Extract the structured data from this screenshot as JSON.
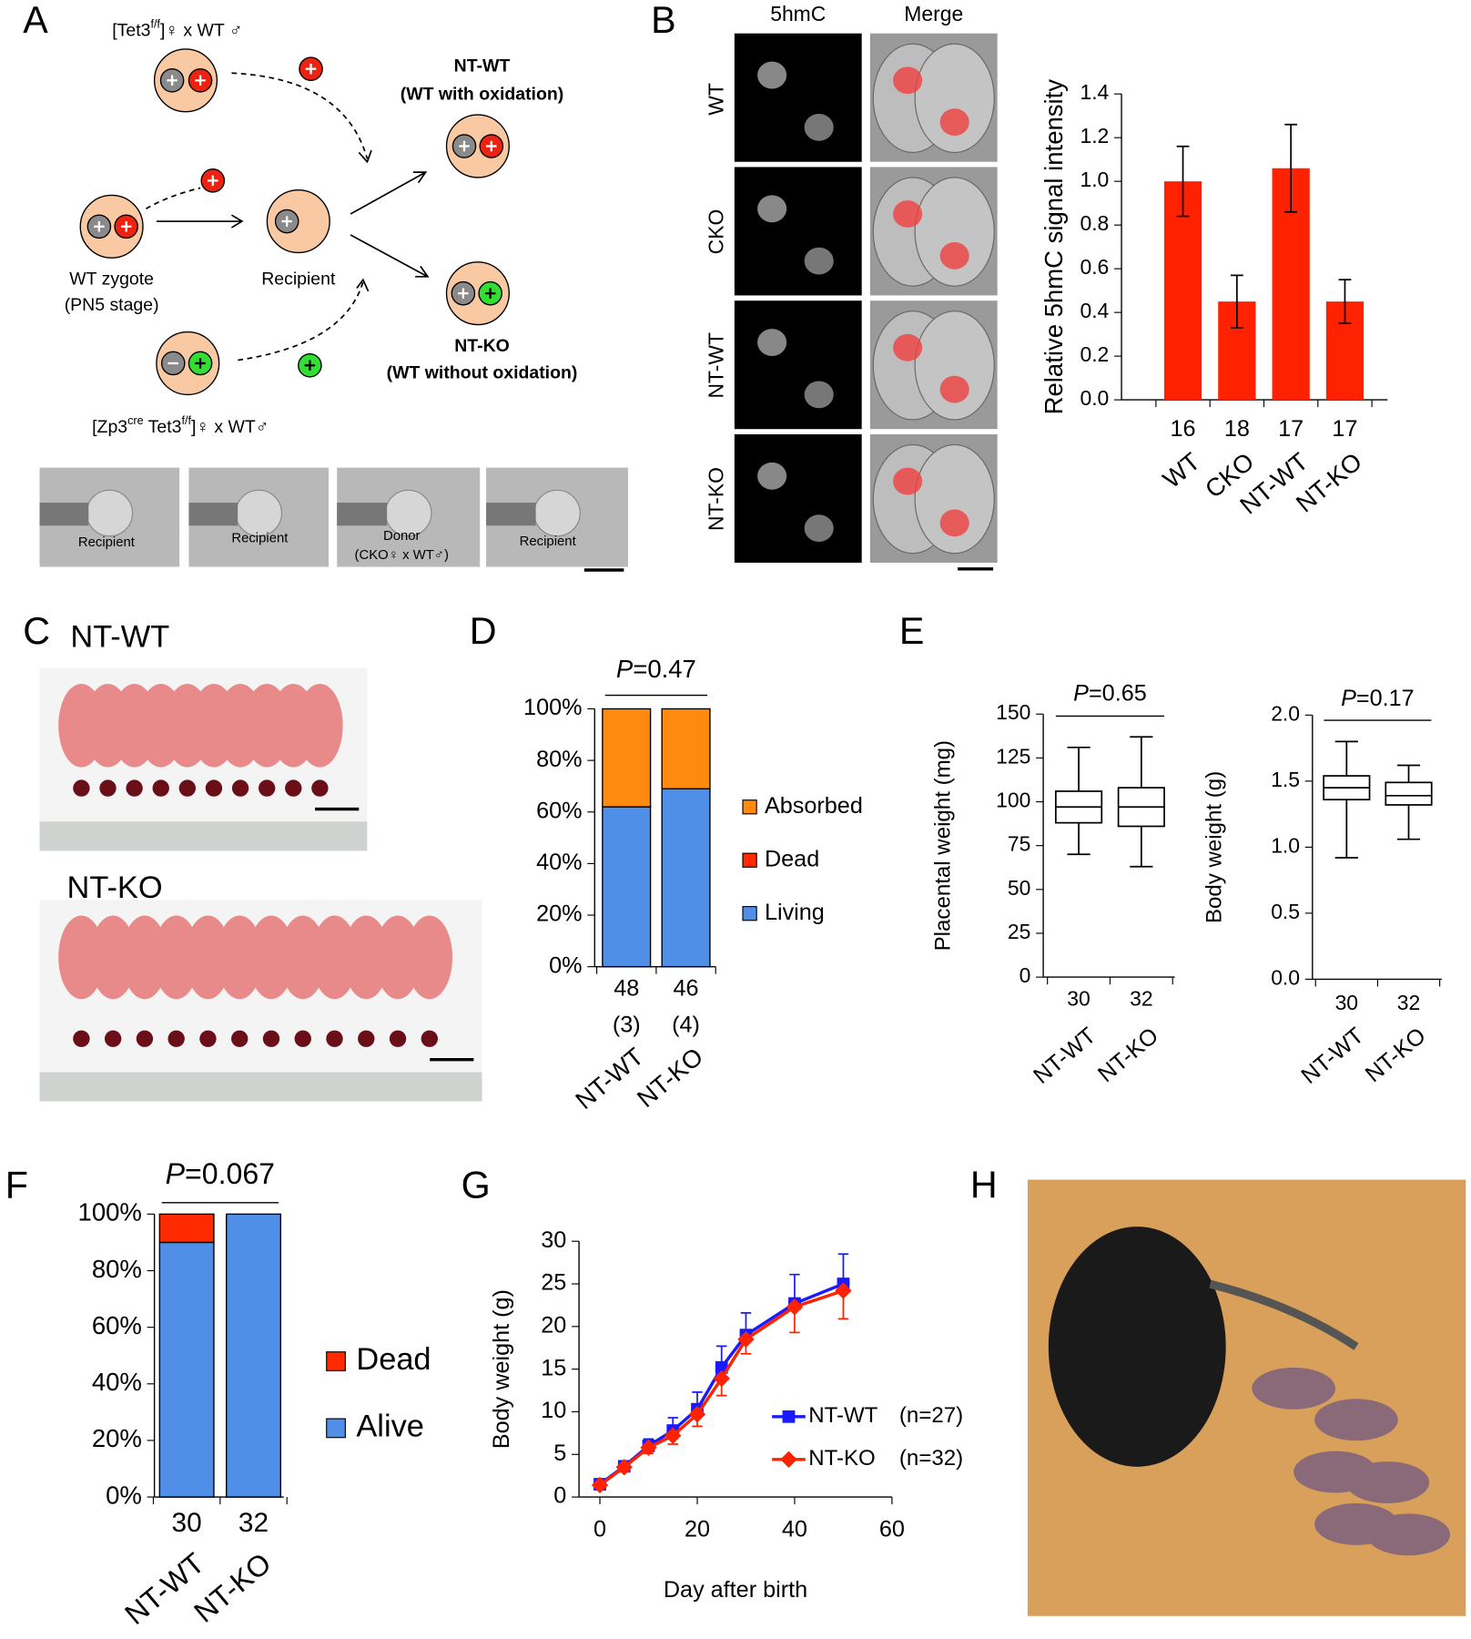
{
  "figure": {
    "panel_letters": [
      "A",
      "B",
      "C",
      "D",
      "E",
      "F",
      "G",
      "H"
    ],
    "panel_a": {
      "donor_top": [
        {
          "text": "[Tet3"
        },
        {
          "text": "f/f",
          "sup": true
        },
        {
          "text": "]♀ x WT ♂"
        }
      ],
      "donor_bottom": [
        {
          "text": "[Zp3"
        },
        {
          "text": "cre",
          "sup": true
        },
        {
          "text": " Tet3"
        },
        {
          "text": "f/f",
          "sup": true
        },
        {
          "text": "]♀ x WT♂"
        }
      ],
      "nt_wt": "NT-WT",
      "nt_wt_sub": "(WT with oxidation)",
      "nt_ko": "NT-KO",
      "nt_ko_sub": "(WT without oxidation)",
      "zygote": "WT zygote",
      "zygote_stage": "(PN5 stage)",
      "recipient": "Recipient",
      "micrograph_labels": [
        "Recipient",
        "Recipient",
        "Donor",
        "(CKO♀ x WT♂)",
        "Recipient"
      ]
    },
    "panel_b": {
      "columns": [
        "5hmC",
        "Merge"
      ],
      "rows": [
        "WT",
        "CKO",
        "NT-WT",
        "NT-KO"
      ]
    },
    "panel_c": {
      "labels": [
        "NT-WT",
        "NT-KO"
      ]
    }
  },
  "chart_data": [
    {
      "type": "bar",
      "ylabel": "Relative 5hmC signal intensity",
      "categories": [
        "WT",
        "CKO",
        "NT-WT",
        "NT-KO"
      ],
      "values": [
        1.0,
        0.45,
        1.06,
        0.45
      ],
      "errors": [
        0.16,
        0.12,
        0.2,
        0.1
      ],
      "n": [
        16,
        18,
        17,
        17
      ],
      "color": "#ff2200",
      "ylim": [
        0,
        1.4
      ],
      "yticks": [
        {
          "value": 0,
          "label": "0.0"
        },
        {
          "value": 0.2,
          "label": "0.2"
        },
        {
          "value": 0.4,
          "label": "0.4"
        },
        {
          "value": 0.6,
          "label": "0.6"
        },
        {
          "value": 0.8,
          "label": "0.8"
        },
        {
          "value": 1.0,
          "label": "1.0"
        },
        {
          "value": 1.2,
          "label": "1.2"
        },
        {
          "value": 1.4,
          "label": "1.4"
        }
      ]
    },
    {
      "type": "stacked_bar",
      "annotation": {
        "italic": "P",
        "text": "=0.47"
      },
      "categories": [
        "NT-WT",
        "NT-KO"
      ],
      "n": [
        48,
        46
      ],
      "n_sub": [
        "(3)",
        "(4)"
      ],
      "series": [
        {
          "name": "Living",
          "color": "#4f8fe8",
          "values": [
            62,
            69
          ]
        },
        {
          "name": "Dead",
          "color": "#ff2a00",
          "values": [
            0,
            0
          ]
        },
        {
          "name": "Absorbed",
          "color": "#ff8a10",
          "values": [
            38,
            31
          ]
        }
      ],
      "ylim": [
        0,
        100
      ],
      "yticks": [
        {
          "value": 0,
          "label": "0%"
        },
        {
          "value": 20,
          "label": "20%"
        },
        {
          "value": 40,
          "label": "40%"
        },
        {
          "value": 60,
          "label": "60%"
        },
        {
          "value": 80,
          "label": "80%"
        },
        {
          "value": 100,
          "label": "100%"
        }
      ]
    },
    {
      "type": "box",
      "ylabel": "Placental weight (mg)",
      "annotation": {
        "italic": "P",
        "text": "=0.65"
      },
      "categories": [
        "NT-WT",
        "NT-KO"
      ],
      "n": [
        30,
        32
      ],
      "boxes": [
        {
          "min": 70,
          "q1": 88,
          "median": 97,
          "q3": 106,
          "max": 131
        },
        {
          "min": 63,
          "q1": 86,
          "median": 97,
          "q3": 108,
          "max": 137
        }
      ],
      "ylim": [
        0,
        150
      ],
      "yticks": [
        0,
        25,
        50,
        75,
        100,
        125,
        150
      ]
    },
    {
      "type": "box",
      "ylabel": "Body weight (g)",
      "annotation": {
        "italic": "P",
        "text": "=0.17"
      },
      "categories": [
        "NT-WT",
        "NT-KO"
      ],
      "n": [
        30,
        32
      ],
      "boxes": [
        {
          "min": 0.92,
          "q1": 1.36,
          "median": 1.45,
          "q3": 1.54,
          "max": 1.8
        },
        {
          "min": 1.06,
          "q1": 1.32,
          "median": 1.39,
          "q3": 1.49,
          "max": 1.62
        }
      ],
      "ylim": [
        0,
        2
      ],
      "yticks": [
        {
          "value": 0,
          "label": "0.0"
        },
        {
          "value": 0.5,
          "label": "0.5"
        },
        {
          "value": 1,
          "label": "1.0"
        },
        {
          "value": 1.5,
          "label": "1.5"
        },
        {
          "value": 2,
          "label": "2.0"
        }
      ]
    },
    {
      "type": "stacked_bar",
      "annotation": {
        "italic": "P",
        "text": "=0.067"
      },
      "categories": [
        "NT-WT",
        "NT-KO"
      ],
      "n": [
        30,
        32
      ],
      "series": [
        {
          "name": "Alive",
          "color": "#4f8fe8",
          "values": [
            90,
            100
          ]
        },
        {
          "name": "Dead",
          "color": "#ff2a00",
          "values": [
            10,
            0
          ]
        }
      ],
      "ylim": [
        0,
        100
      ],
      "yticks": [
        {
          "value": 0,
          "label": "0%"
        },
        {
          "value": 20,
          "label": "20%"
        },
        {
          "value": 40,
          "label": "40%"
        },
        {
          "value": 60,
          "label": "60%"
        },
        {
          "value": 80,
          "label": "80%"
        },
        {
          "value": 100,
          "label": "100%"
        }
      ]
    },
    {
      "type": "line",
      "xlabel": "Day after birth",
      "ylabel": "Body weight (g)",
      "x": [
        0,
        5,
        10,
        15,
        20,
        25,
        30,
        40,
        50
      ],
      "series": [
        {
          "name": "NT-WT",
          "n_label": "(n=27)",
          "color": "#1a1aff",
          "marker": "square",
          "error_side": "up",
          "values": [
            1.5,
            3.6,
            6,
            7.8,
            10.3,
            15.2,
            19,
            22.7,
            25
          ],
          "errors": [
            0.3,
            0.5,
            0.8,
            1.5,
            2,
            2.5,
            2.6,
            3.4,
            3.5
          ]
        },
        {
          "name": "NT-KO",
          "n_label": "(n=32)",
          "color": "#ff2200",
          "marker": "diamond",
          "error_side": "down",
          "values": [
            1.4,
            3.5,
            5.8,
            7.2,
            9.7,
            13.9,
            18.5,
            22.3,
            24.2
          ],
          "errors": [
            0.3,
            0.5,
            0.7,
            1,
            1.4,
            2,
            1.7,
            3,
            3.3
          ]
        }
      ],
      "xlim": [
        0,
        60
      ],
      "xticks": [
        0,
        20,
        40,
        60
      ],
      "ylim": [
        0,
        30
      ],
      "yticks": [
        0,
        5,
        10,
        15,
        20,
        25,
        30
      ]
    }
  ]
}
